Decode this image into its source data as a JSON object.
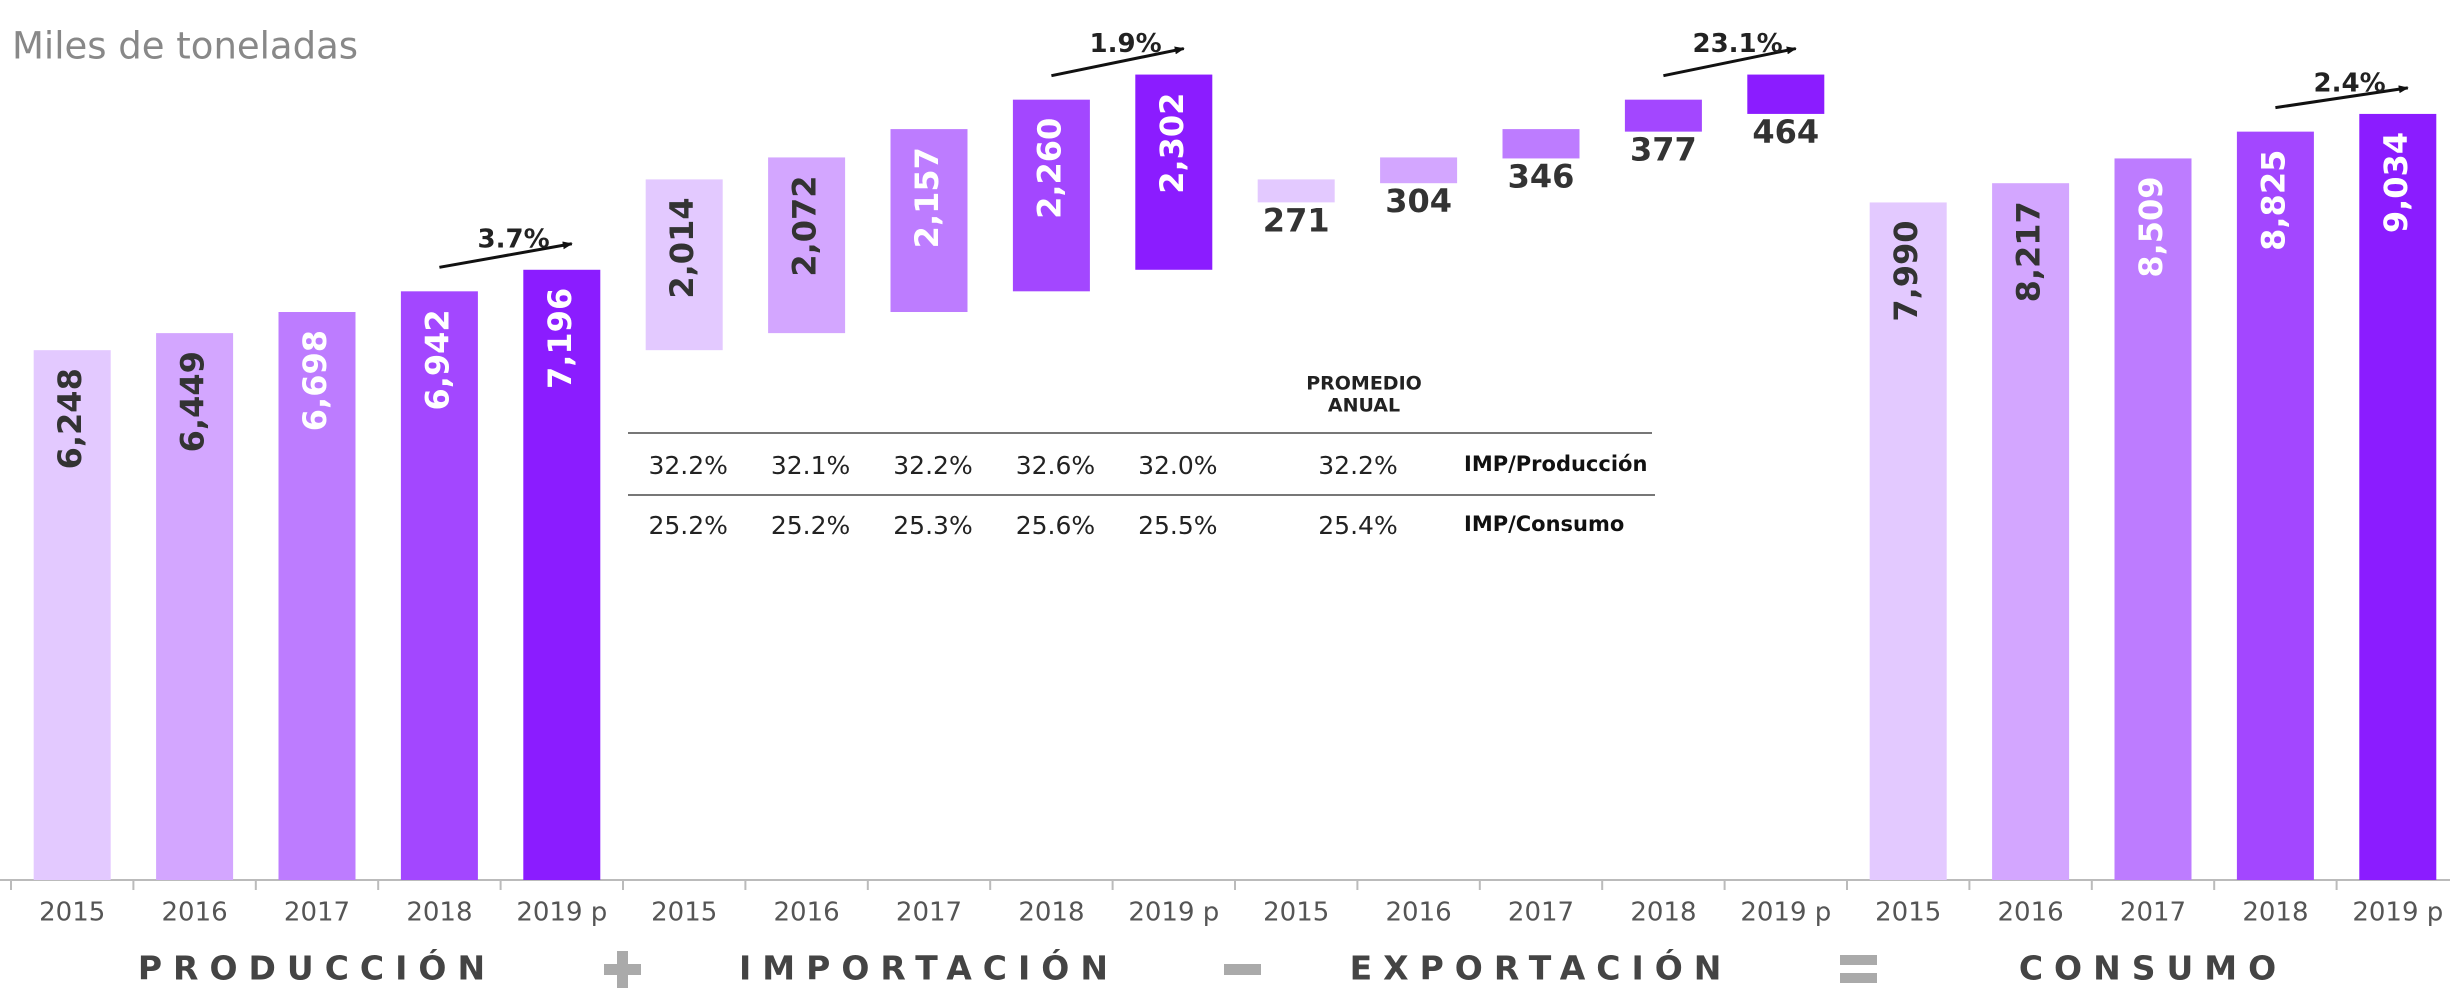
{
  "chart_data": {
    "type": "waterfall",
    "title": "Miles de toneladas",
    "colors": [
      "#e3c9ff",
      "#d3a6ff",
      "#bd7cff",
      "#a347ff",
      "#8b1cff"
    ],
    "groups": [
      {
        "name": "PRODUCCIÓN",
        "categories": [
          "2015",
          "2016",
          "2017",
          "2018",
          "2019 p"
        ],
        "values": [
          6248,
          6449,
          6698,
          6942,
          7196
        ],
        "value_labels": [
          "6,248",
          "6,449",
          "6,698",
          "6,942",
          "7,196"
        ],
        "growth": 3.7,
        "growth_label": "3.7%"
      },
      {
        "name": "IMPORTACIÓN",
        "categories": [
          "2015",
          "2016",
          "2017",
          "2018",
          "2019 p"
        ],
        "values": [
          2014,
          2072,
          2157,
          2260,
          2302
        ],
        "value_labels": [
          "2,014",
          "2,072",
          "2,157",
          "2,260",
          "2,302"
        ],
        "growth": 1.9,
        "growth_label": "1.9%"
      },
      {
        "name": "EXPORTACIÓN",
        "categories": [
          "2015",
          "2016",
          "2017",
          "2018",
          "2019 p"
        ],
        "values": [
          271,
          304,
          346,
          377,
          464
        ],
        "value_labels": [
          "271",
          "304",
          "346",
          "377",
          "464"
        ],
        "growth": 23.1,
        "growth_label": "23.1%"
      },
      {
        "name": "CONSUMO",
        "categories": [
          "2015",
          "2016",
          "2017",
          "2018",
          "2019 p"
        ],
        "values": [
          7990,
          8217,
          8509,
          8825,
          9034
        ],
        "value_labels": [
          "7,990",
          "8,217",
          "8,509",
          "8,825",
          "9,034"
        ],
        "growth": 2.4,
        "growth_label": "2.4%"
      }
    ],
    "table": {
      "header": [
        "PROMEDIO",
        "ANUAL"
      ],
      "rows": [
        {
          "name": "IMP/Producción",
          "values": [
            32.2,
            32.1,
            32.2,
            32.6,
            32.0
          ],
          "value_labels": [
            "32.2%",
            "32.1%",
            "32.2%",
            "32.6%",
            "32.0%"
          ],
          "average": 32.2,
          "average_label": "32.2%"
        },
        {
          "name": "IMP/Consumo",
          "values": [
            25.2,
            25.2,
            25.3,
            25.6,
            25.5
          ],
          "value_labels": [
            "25.2%",
            "25.2%",
            "25.3%",
            "25.6%",
            "25.5%"
          ],
          "average": 25.4,
          "average_label": "25.4%"
        }
      ]
    }
  }
}
